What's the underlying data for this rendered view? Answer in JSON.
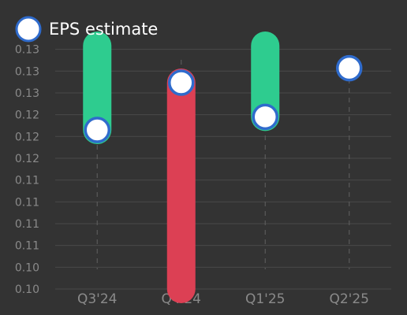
{
  "legend": {
    "label": "EPS estimate",
    "position": "top-left"
  },
  "colors": {
    "background": "#333333",
    "beat": "#2ecc8f",
    "miss": "#dc4054",
    "marker_fill": "#ffffff",
    "marker_stroke": "#2f6bcc",
    "grid": "#4a4a4a",
    "tick_text": "#8a8a8a",
    "legend_text": "#ffffff"
  },
  "chart_data": {
    "type": "scatter",
    "title": "",
    "xlabel": "",
    "ylabel": "",
    "categories": [
      "Q3'24",
      "Q4'24",
      "Q1'25",
      "Q2'25"
    ],
    "ylim": [
      0.1,
      0.1335
    ],
    "y_ticks": [
      0.1,
      0.103,
      0.106,
      0.109,
      0.112,
      0.115,
      0.118,
      0.121,
      0.124,
      0.127,
      0.13,
      0.133
    ],
    "y_tick_labels": [
      "0.10",
      "0.10",
      "0.11",
      "0.11",
      "0.11",
      "0.11",
      "0.12",
      "0.12",
      "0.12",
      "0.13",
      "0.13",
      "0.13"
    ],
    "grid": true,
    "series": [
      {
        "name": "EPS estimate",
        "values": [
          0.1219,
          0.1284,
          0.1237,
          0.1304
        ]
      },
      {
        "values": [
          0.1335,
          0.1,
          0.1335,
          null
        ]
      }
    ]
  }
}
